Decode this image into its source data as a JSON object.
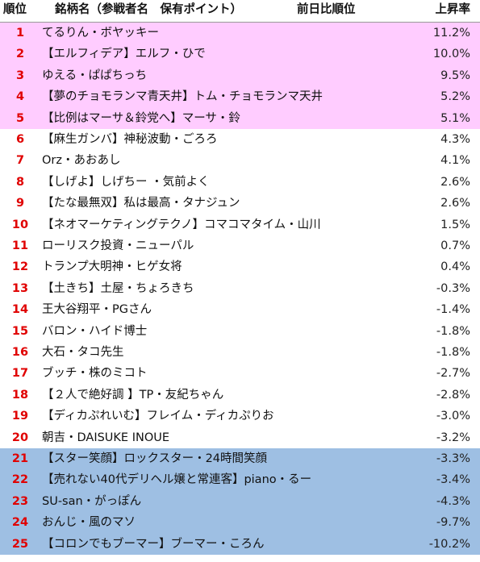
{
  "table": {
    "header": [
      "順位",
      "銘柄名（参戦者名　保有ポイント）",
      "前日比順位",
      "上昇率"
    ],
    "rows": [
      [
        "1",
        "てるりん・ボヤッキー",
        "11.2%"
      ],
      [
        "2",
        "【エルフィデア】エルフ・ひで",
        "10.0%"
      ],
      [
        "3",
        "ゆえる・ぱぱちっち",
        "9.5%"
      ],
      [
        "4",
        "【夢のチョモランマ青天井】トム・チョモランマ天井",
        "5.2%"
      ],
      [
        "5",
        "【比例はマーサ＆鈴党へ】マーサ・鈴",
        "5.1%"
      ],
      [
        "6",
        "【麻生ガンバ】神秘波動・ごろろ",
        "4.3%"
      ],
      [
        "7",
        "Orz・あおあし",
        "4.1%"
      ],
      [
        "8",
        "【しげよ】しげちー ・気前よく",
        "2.6%"
      ],
      [
        "9",
        "【たな最無双】私は最高・タナジュン",
        "2.6%"
      ],
      [
        "10",
        "【ネオマーケティングテクノ】コマコマタイム・山川",
        "1.5%"
      ],
      [
        "11",
        "ローリスク投資・ニューパル",
        "0.7%"
      ],
      [
        "12",
        "トランプ大明神・ヒゲ女将",
        "0.4%"
      ],
      [
        "13",
        "【土きち】土屋・ちょろきち",
        "-0.3%"
      ],
      [
        "14",
        "王大谷翔平・PGさん",
        "-1.4%"
      ],
      [
        "15",
        "バロン・ハイド博士",
        "-1.8%"
      ],
      [
        "16",
        "大石・タコ先生",
        "-1.8%"
      ],
      [
        "17",
        "ブッチ・株のミコト",
        "-2.7%"
      ],
      [
        "18",
        "【２人で絶好調 】TP・友紀ちゃん",
        "-2.8%"
      ],
      [
        "19",
        "【ディカぷれいむ】フレイム・ディカぷりお",
        "-3.0%"
      ],
      [
        "20",
        "朝吉・DAISUKE INOUE",
        "-3.2%"
      ],
      [
        "21",
        "【スター笑顔】ロックスター・24時間笑顔",
        "-3.3%"
      ],
      [
        "22",
        "【売れない40代デリヘル嬢と常連客】piano・るー",
        "-3.4%"
      ],
      [
        "23",
        "SU-san・がっぽん",
        "-4.3%"
      ],
      [
        "24",
        "おんじ・風のマソ",
        "-9.7%"
      ],
      [
        "25",
        "【コロンでもブーマー】ブーマー・ころん",
        "-10.2%"
      ]
    ]
  }
}
